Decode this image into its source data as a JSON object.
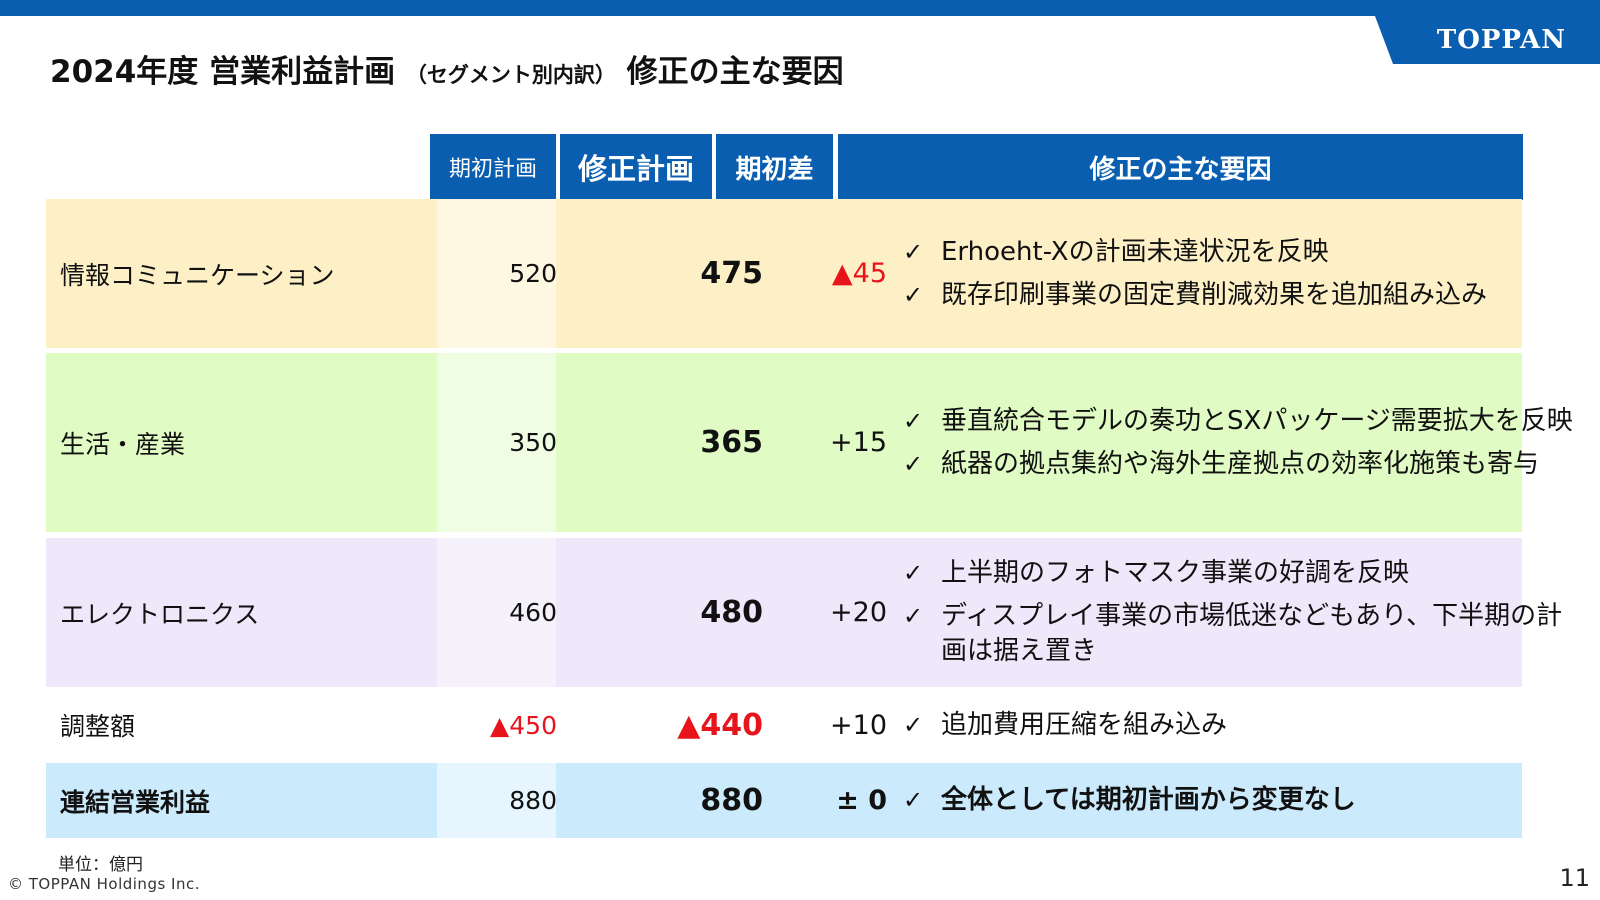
{
  "header": {
    "logo": "TOPPAN",
    "title_main": "2024年度 営業利益計画",
    "title_sub": "（セグメント別内訳）",
    "title_tail": "修正の主な要因"
  },
  "table": {
    "columns": {
      "plan": "期初計画",
      "revised": "修正計画",
      "diff": "期初差",
      "reasons": "修正の主な要因"
    },
    "rows": [
      {
        "segment": "情報コミュニケーション",
        "plan": "520",
        "revised": "475",
        "diff": "▲45",
        "reasons": [
          "Erhoeht-Xの計画未達状況を反映",
          "既存印刷事業の固定費削減効果を追加組み込み"
        ]
      },
      {
        "segment": "生活・産業",
        "plan": "350",
        "revised": "365",
        "diff": "+15",
        "reasons": [
          "垂直統合モデルの奏功とSXパッケージ需要拡大を反映",
          "紙器の拠点集約や海外生産拠点の効率化施策も寄与"
        ]
      },
      {
        "segment": "エレクトロニクス",
        "plan": "460",
        "revised": "480",
        "diff": "+20",
        "reasons": [
          "上半期のフォトマスク事業の好調を反映",
          "ディスプレイ事業の市場低迷などもあり、下半期の計画は据え置き"
        ]
      },
      {
        "segment": "調整額",
        "plan": "▲450",
        "revised": "▲440",
        "diff": "+10",
        "reasons": [
          "追加費用圧縮を組み込み"
        ]
      },
      {
        "segment": "連結営業利益",
        "plan": "880",
        "revised": "880",
        "diff": "± 0",
        "reasons": [
          "全体としては期初計画から変更なし"
        ]
      }
    ]
  },
  "footer": {
    "unit": "単位：億円",
    "copyright": "© TOPPAN Holdings Inc.",
    "page": "11"
  },
  "colors": {
    "brand_blue": "#0a5eb0",
    "negative_red": "#e8141c",
    "row_info_bg": "#fdf0c6",
    "row_life_bg": "#e0fbc4",
    "row_elec_bg": "#efe7fa",
    "row_total_bg": "#cbeafc"
  }
}
